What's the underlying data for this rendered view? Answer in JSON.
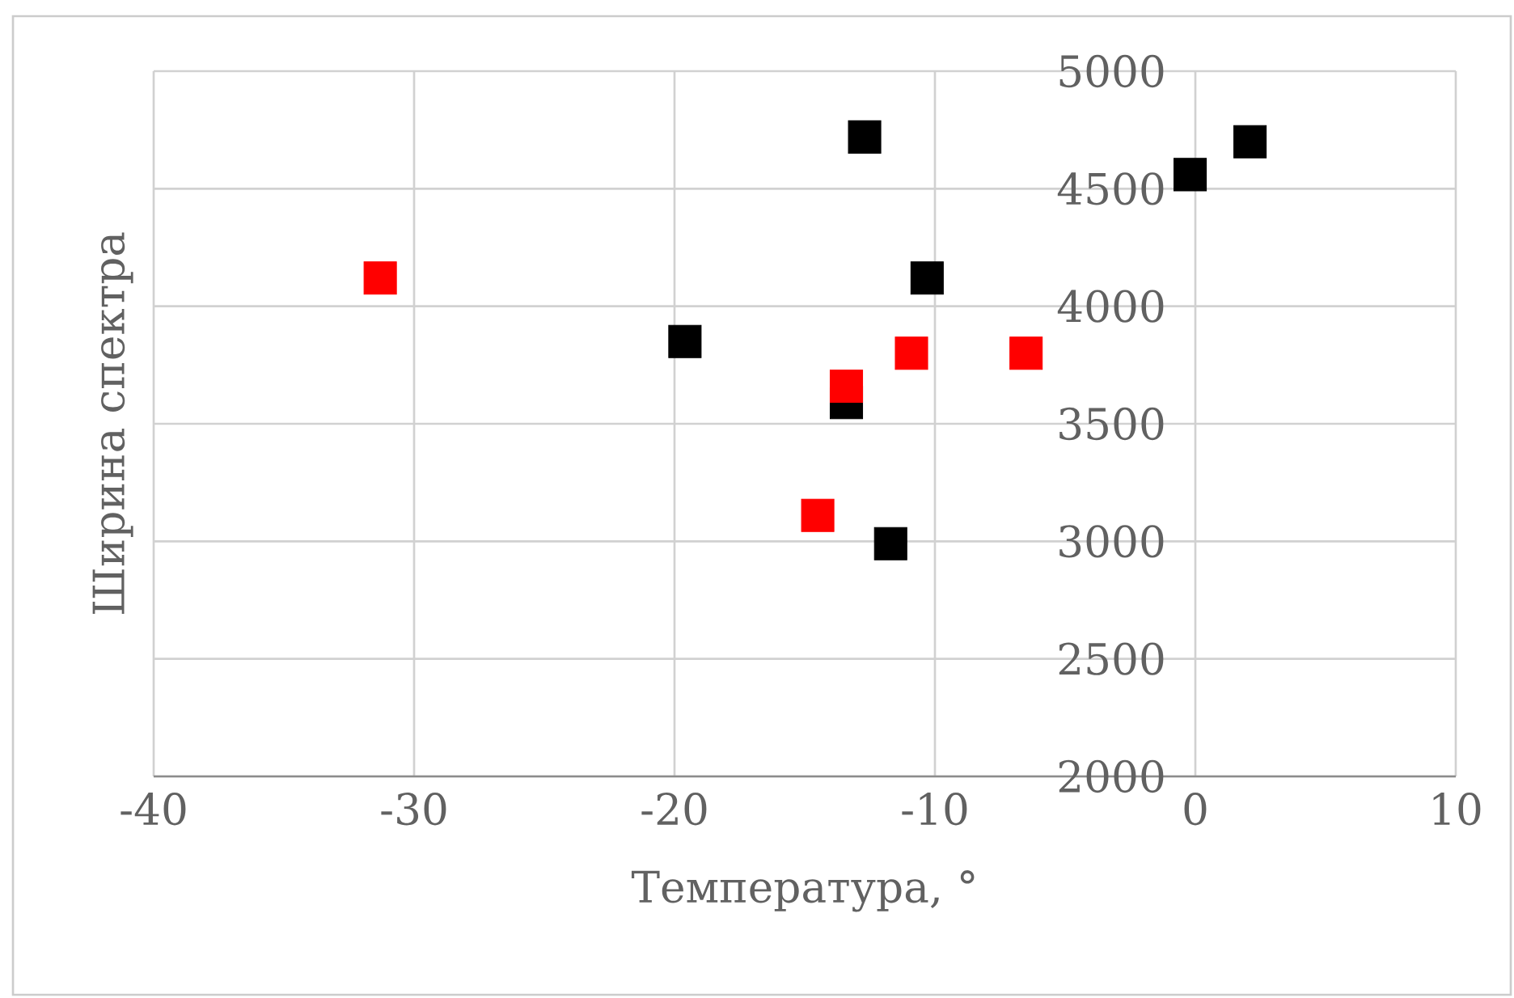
{
  "chart_data": {
    "type": "scatter",
    "xlabel": "Температура, °",
    "ylabel": "Ширина спектра",
    "xlim": [
      -40,
      10
    ],
    "xticks": [
      -40,
      -30,
      -20,
      -10,
      0,
      10
    ],
    "ylim": [
      2000,
      5000
    ],
    "yticks": [
      2000,
      2500,
      3000,
      3500,
      4000,
      4500,
      5000
    ],
    "grid": true,
    "marker": "square",
    "series": [
      {
        "color": "#000000",
        "x": [
          -12.7,
          2.1,
          -0.2,
          -10.3,
          -19.6,
          -13.4,
          -11.7
        ],
        "values": [
          4720,
          4700,
          4560,
          4120,
          3850,
          3590,
          2990
        ]
      },
      {
        "color": "#ff0000",
        "x": [
          -31.3,
          -10.9,
          -6.5,
          -13.4,
          -14.5
        ],
        "values": [
          4120,
          3800,
          3800,
          3660,
          3110
        ]
      }
    ]
  }
}
